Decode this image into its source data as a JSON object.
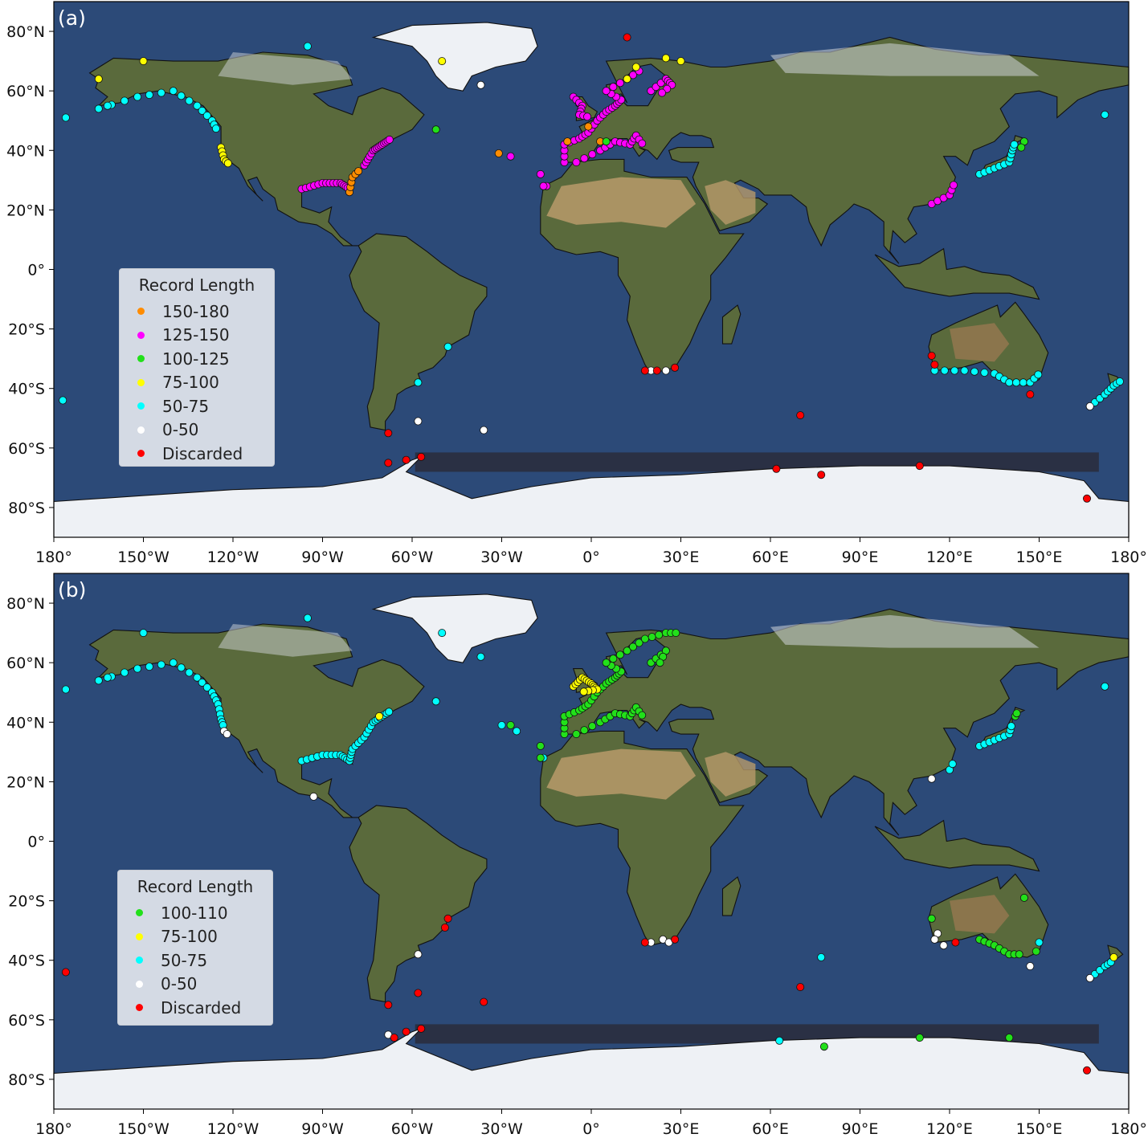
{
  "panels": [
    {
      "id": "a",
      "label": "(a)",
      "legend_title": "Record Length",
      "legend": [
        {
          "label": "150-180",
          "color": "#ff8c00"
        },
        {
          "label": "125-150",
          "color": "#ff00ff"
        },
        {
          "label": "100-125",
          "color": "#22e01a"
        },
        {
          "label": "75-100",
          "color": "#ffff00"
        },
        {
          "label": "50-75",
          "color": "#00ffff"
        },
        {
          "label": "0-50",
          "color": "#ffffff"
        },
        {
          "label": "Discarded",
          "color": "#ff0000"
        }
      ]
    },
    {
      "id": "b",
      "label": "(b)",
      "legend_title": "Record Length",
      "legend": [
        {
          "label": "100-110",
          "color": "#22e01a"
        },
        {
          "label": "75-100",
          "color": "#ffff00"
        },
        {
          "label": "50-75",
          "color": "#00ffff"
        },
        {
          "label": "0-50",
          "color": "#ffffff"
        },
        {
          "label": "Discarded",
          "color": "#ff0000"
        }
      ]
    }
  ],
  "axes": {
    "lon_ticks": [
      "180°",
      "150°W",
      "120°W",
      "90°W",
      "60°W",
      "30°W",
      "0°",
      "30°E",
      "60°E",
      "90°E",
      "120°E",
      "150°E",
      "180°"
    ],
    "lat_ticks": [
      "80°N",
      "60°N",
      "40°N",
      "20°N",
      "0°",
      "20°S",
      "40°S",
      "60°S",
      "80°S"
    ],
    "lon_values": [
      -180,
      -150,
      -120,
      -90,
      -60,
      -30,
      0,
      30,
      60,
      90,
      120,
      150,
      180
    ],
    "lat_values": [
      80,
      60,
      40,
      20,
      0,
      -20,
      -40,
      -60,
      -80
    ],
    "lon_range": [
      -180,
      180
    ],
    "lat_range": [
      -90,
      90
    ]
  },
  "colors": {
    "ocean": "#2c4a78",
    "land": "#5a6a3c",
    "desert": "#b89a6a",
    "ice": "#eef1f5"
  }
}
